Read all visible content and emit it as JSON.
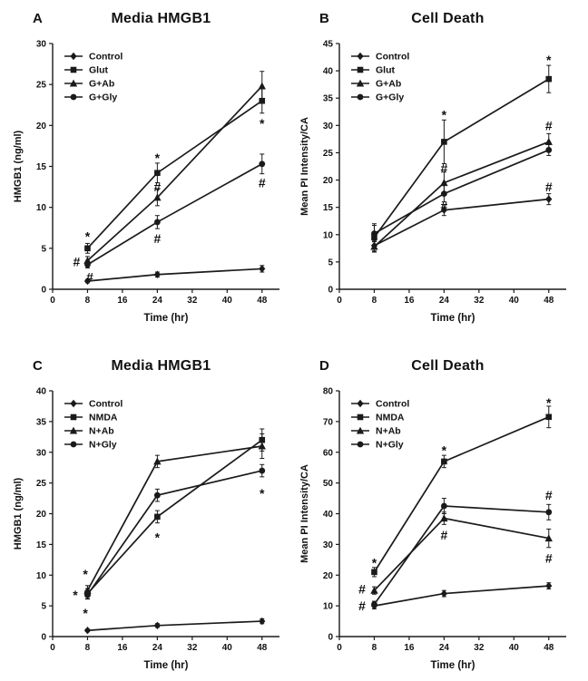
{
  "figure": {
    "background": "#ffffff",
    "line_color": "#1a1a1a"
  },
  "panels": [
    {
      "letter": "A",
      "title": "Media HMGB1"
    },
    {
      "letter": "B",
      "title": "Cell Death"
    },
    {
      "letter": "C",
      "title": "Media HMGB1"
    },
    {
      "letter": "D",
      "title": "Cell Death"
    }
  ],
  "chart_data": [
    {
      "type": "line",
      "title": "Media HMGB1",
      "xlabel": "Time (hr)",
      "ylabel": "HMGB1 (ng/ml)",
      "x": [
        8,
        24,
        48
      ],
      "xlim": [
        0,
        52
      ],
      "xticks": [
        0,
        8,
        16,
        24,
        32,
        40,
        48
      ],
      "ylim": [
        0,
        30
      ],
      "yticks": [
        0,
        5,
        10,
        15,
        20,
        25,
        30
      ],
      "legend_position": "top-left",
      "grid": false,
      "series": [
        {
          "name": "Control",
          "marker": "diamond",
          "values": [
            1,
            1.8,
            2.5
          ],
          "err": [
            0.2,
            0.3,
            0.4
          ]
        },
        {
          "name": "Glut",
          "marker": "square",
          "values": [
            5,
            14.2,
            23
          ],
          "err": [
            0.6,
            1.2,
            1.5
          ]
        },
        {
          "name": "G+Ab",
          "marker": "triangle",
          "values": [
            3.5,
            11.2,
            24.8
          ],
          "err": [
            0.5,
            1.0,
            1.8
          ]
        },
        {
          "name": "G+Gly",
          "marker": "circle",
          "values": [
            3,
            8.2,
            15.3
          ],
          "err": [
            0.4,
            0.8,
            1.2
          ]
        }
      ],
      "annotations": [
        {
          "x": 8,
          "y": 6.8,
          "text": "*"
        },
        {
          "x": 5.5,
          "y": 3.4,
          "text": "#"
        },
        {
          "x": 8.5,
          "y": 1.5,
          "text": "#"
        },
        {
          "x": 24,
          "y": 16.4,
          "text": "*"
        },
        {
          "x": 24,
          "y": 12.5,
          "text": "#"
        },
        {
          "x": 24,
          "y": 6.2,
          "text": "#"
        },
        {
          "x": 48,
          "y": 20.6,
          "text": "*"
        },
        {
          "x": 48,
          "y": 13.0,
          "text": "#"
        }
      ]
    },
    {
      "type": "line",
      "title": "Cell Death",
      "xlabel": "Time (hr)",
      "ylabel": "Mean PI Intensity/CA",
      "x": [
        8,
        24,
        48
      ],
      "xlim": [
        0,
        52
      ],
      "xticks": [
        0,
        8,
        16,
        24,
        32,
        40,
        48
      ],
      "ylim": [
        0,
        45
      ],
      "yticks": [
        0,
        5,
        10,
        15,
        20,
        25,
        30,
        35,
        40,
        45
      ],
      "legend_position": "top-left",
      "grid": false,
      "series": [
        {
          "name": "Control",
          "marker": "diamond",
          "values": [
            8,
            14.5,
            16.5
          ],
          "err": [
            1,
            1,
            1
          ]
        },
        {
          "name": "Glut",
          "marker": "square",
          "values": [
            9.5,
            27,
            38.5
          ],
          "err": [
            2.5,
            4,
            2.5
          ]
        },
        {
          "name": "G+Ab",
          "marker": "triangle",
          "values": [
            7.8,
            19.5,
            27
          ],
          "err": [
            1,
            2,
            1.5
          ]
        },
        {
          "name": "G+Gly",
          "marker": "circle",
          "values": [
            10.2,
            17.5,
            25.5
          ],
          "err": [
            1.5,
            1.5,
            1
          ]
        }
      ],
      "annotations": [
        {
          "x": 24,
          "y": 32.5,
          "text": "*"
        },
        {
          "x": 24,
          "y": 22.2,
          "text": "#"
        },
        {
          "x": 24,
          "y": 15.3,
          "text": "#"
        },
        {
          "x": 48,
          "y": 42.5,
          "text": "*"
        },
        {
          "x": 48,
          "y": 30.0,
          "text": "#"
        },
        {
          "x": 48,
          "y": 18.8,
          "text": "#"
        }
      ]
    },
    {
      "type": "line",
      "title": "Media HMGB1",
      "xlabel": "Time (hr)",
      "ylabel": "HMGB1 (ng/ml)",
      "x": [
        8,
        24,
        48
      ],
      "xlim": [
        0,
        52
      ],
      "xticks": [
        0,
        8,
        16,
        24,
        32,
        40,
        48
      ],
      "ylim": [
        0,
        40
      ],
      "yticks": [
        0,
        5,
        10,
        15,
        20,
        25,
        30,
        35,
        40
      ],
      "legend_position": "top-left",
      "grid": false,
      "series": [
        {
          "name": "Control",
          "marker": "diamond",
          "values": [
            1,
            1.8,
            2.5
          ],
          "err": [
            0.2,
            0.3,
            0.4
          ]
        },
        {
          "name": "NMDA",
          "marker": "square",
          "values": [
            7,
            19.5,
            32
          ],
          "err": [
            0.8,
            1,
            1.8
          ]
        },
        {
          "name": "N+Ab",
          "marker": "triangle",
          "values": [
            7.5,
            28.5,
            31
          ],
          "err": [
            0.8,
            1,
            2
          ]
        },
        {
          "name": "N+Gly",
          "marker": "circle",
          "values": [
            6.8,
            23,
            27
          ],
          "err": [
            0.7,
            1,
            1
          ]
        }
      ],
      "annotations": [
        {
          "x": 7.5,
          "y": 10.6,
          "text": "*"
        },
        {
          "x": 5.2,
          "y": 7.2,
          "text": "*"
        },
        {
          "x": 7.5,
          "y": 4.3,
          "text": "*"
        },
        {
          "x": 24,
          "y": 16.6,
          "text": "*"
        },
        {
          "x": 48,
          "y": 23.8,
          "text": "*"
        }
      ]
    },
    {
      "type": "line",
      "title": "Cell Death",
      "xlabel": "Time (hr)",
      "ylabel": "Mean PI Intensity/CA",
      "x": [
        8,
        24,
        48
      ],
      "xlim": [
        0,
        52
      ],
      "xticks": [
        0,
        8,
        16,
        24,
        32,
        40,
        48
      ],
      "ylim": [
        0,
        80
      ],
      "yticks": [
        0,
        10,
        20,
        30,
        40,
        50,
        60,
        70,
        80
      ],
      "legend_position": "top-left",
      "grid": false,
      "series": [
        {
          "name": "Control",
          "marker": "diamond",
          "values": [
            10,
            14,
            16.5
          ],
          "err": [
            1,
            1,
            1
          ]
        },
        {
          "name": "NMDA",
          "marker": "square",
          "values": [
            21,
            57,
            71.5
          ],
          "err": [
            1.5,
            2,
            3.5
          ]
        },
        {
          "name": "N+Ab",
          "marker": "triangle",
          "values": [
            15,
            38.5,
            32
          ],
          "err": [
            1.2,
            2,
            3
          ]
        },
        {
          "name": "N+Gly",
          "marker": "circle",
          "values": [
            10.5,
            42.5,
            40.5
          ],
          "err": [
            1,
            2.5,
            2.5
          ]
        }
      ],
      "annotations": [
        {
          "x": 8,
          "y": 25.0,
          "text": "*"
        },
        {
          "x": 5.2,
          "y": 15.5,
          "text": "#"
        },
        {
          "x": 5.2,
          "y": 10.0,
          "text": "#"
        },
        {
          "x": 24,
          "y": 61.5,
          "text": "*"
        },
        {
          "x": 24,
          "y": 33.0,
          "text": "#"
        },
        {
          "x": 48,
          "y": 77.0,
          "text": "*"
        },
        {
          "x": 48,
          "y": 46.0,
          "text": "#"
        },
        {
          "x": 48,
          "y": 25.5,
          "text": "#"
        }
      ]
    }
  ]
}
